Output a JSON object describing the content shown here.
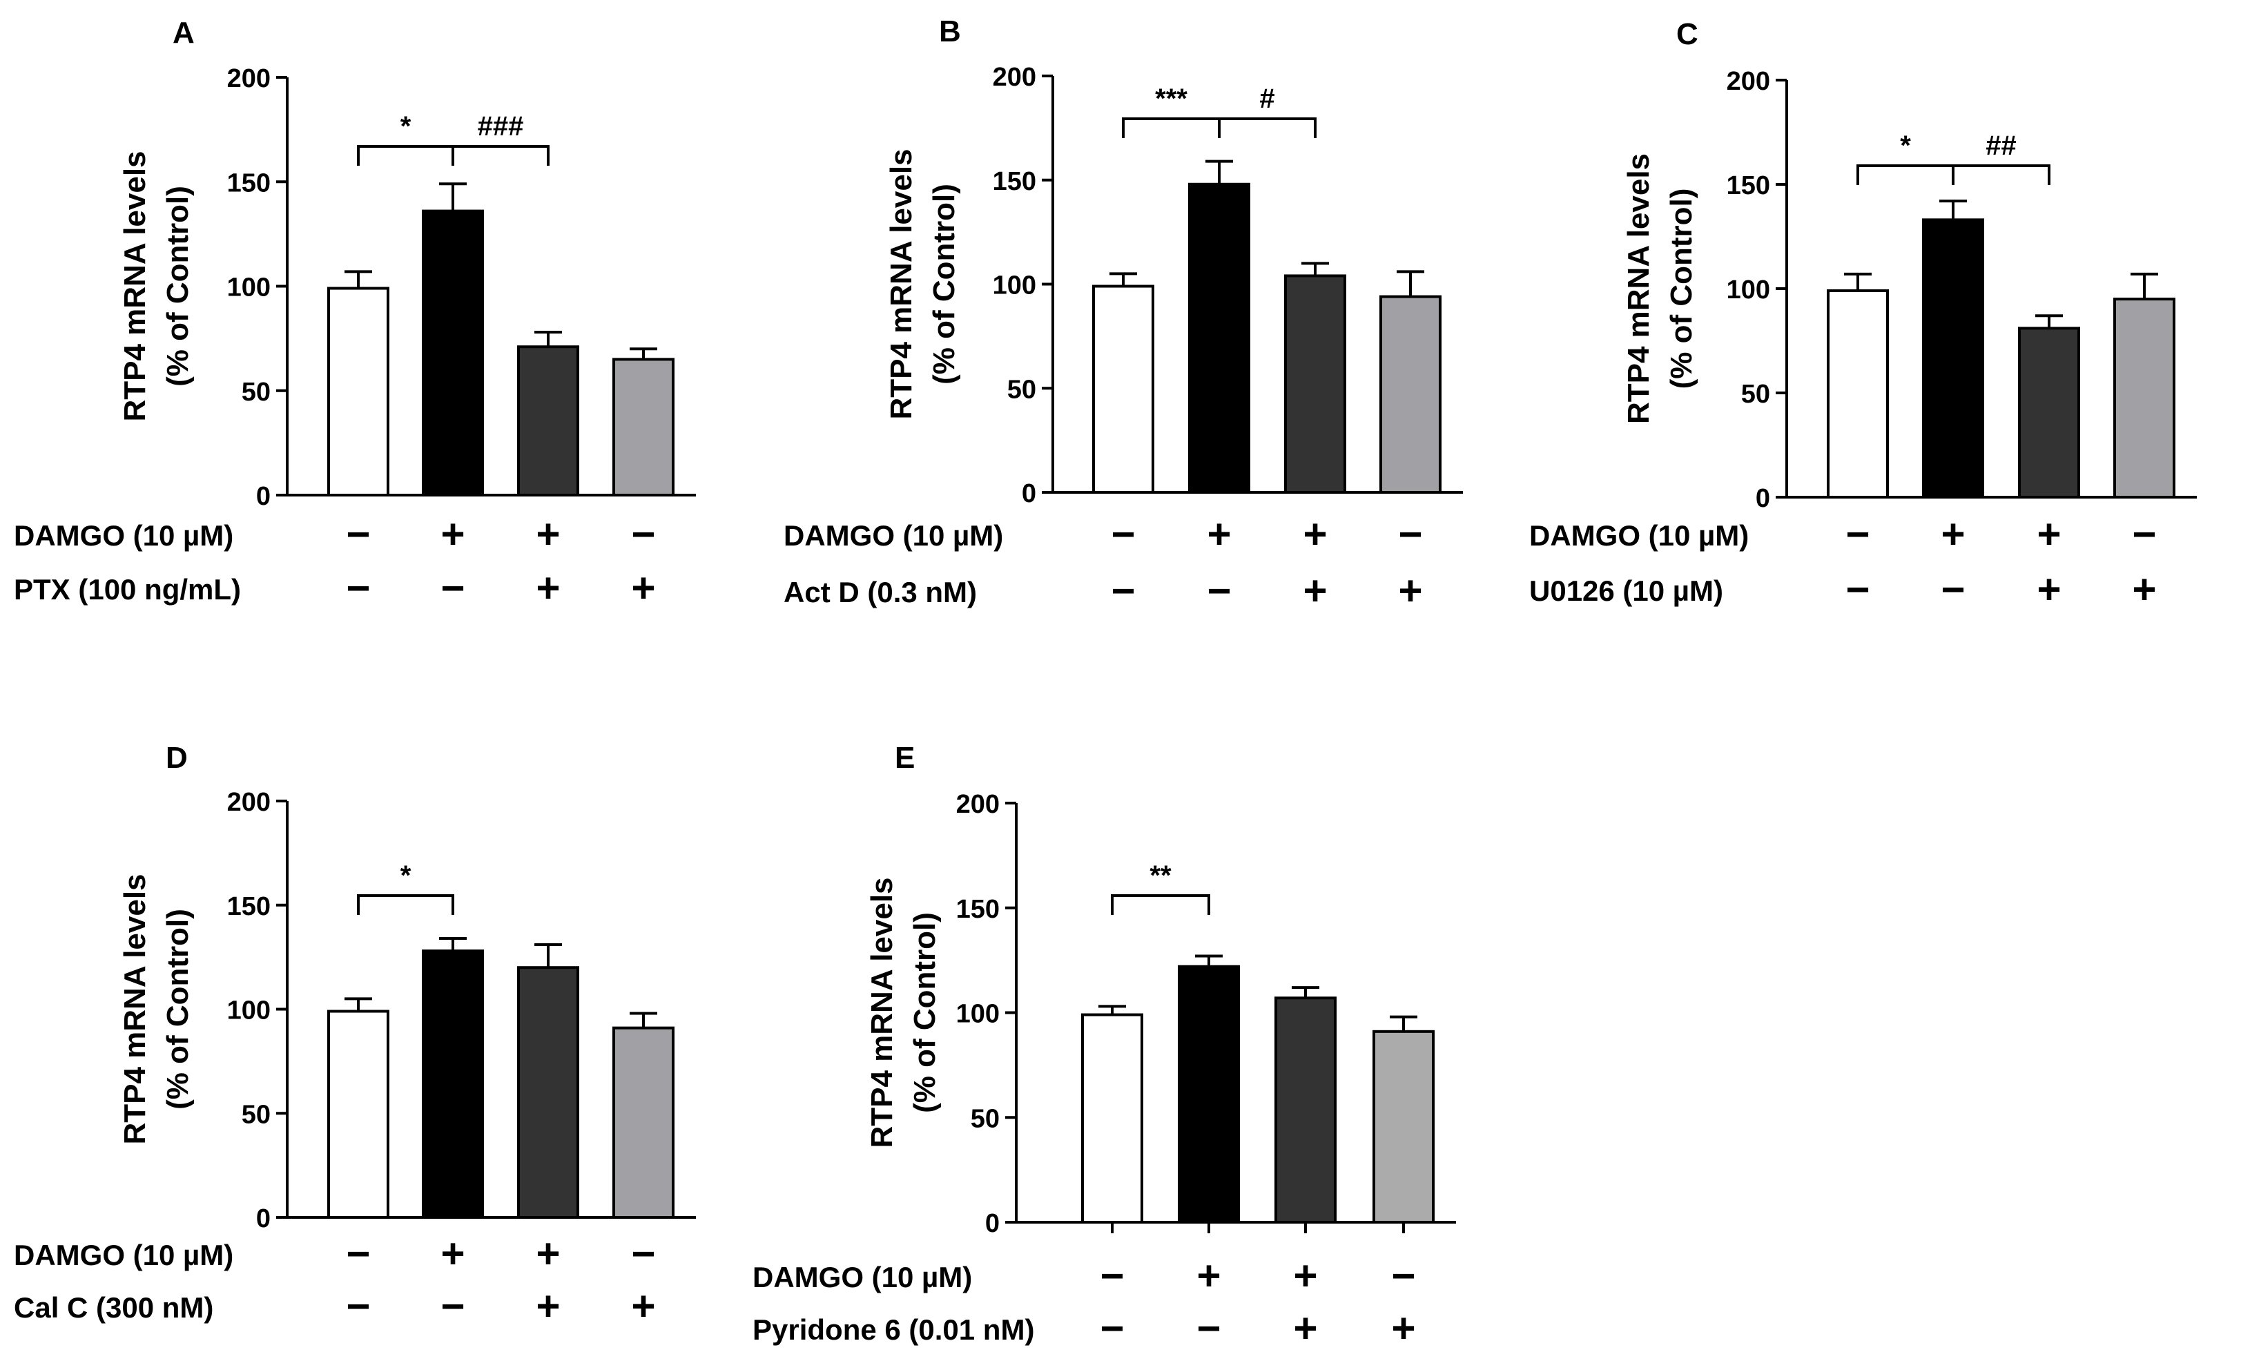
{
  "chart_data": [
    {
      "panel": "A",
      "type": "bar",
      "ylabel_line1": "RTP4 mRNA levels",
      "ylabel_line2": "(% of Control)",
      "ylim": [
        0,
        200
      ],
      "yticks": [
        "0",
        "50",
        "100",
        "150",
        "200"
      ],
      "values": [
        99,
        136,
        71,
        65
      ],
      "errors": [
        8,
        13,
        7,
        5
      ],
      "bar_colors": [
        "#ffffff",
        "#000000",
        "#333333",
        "#a0a0a5"
      ],
      "treatments": [
        {
          "label": "DAMGO (10 µM)",
          "signs": [
            "−",
            "+",
            "+",
            "−"
          ]
        },
        {
          "label": "PTX (100 ng/mL)",
          "signs": [
            "−",
            "−",
            "+",
            "+"
          ]
        }
      ],
      "significance": [
        {
          "from": 0,
          "to": 1,
          "label": "*"
        },
        {
          "from": 1,
          "to": 2,
          "label": "###"
        }
      ]
    },
    {
      "panel": "B",
      "type": "bar",
      "ylabel_line1": "RTP4 mRNA levels",
      "ylabel_line2": "(% of Control)",
      "ylim": [
        0,
        200
      ],
      "yticks": [
        "0",
        "50",
        "100",
        "150",
        "200"
      ],
      "values": [
        99,
        148,
        104,
        94
      ],
      "errors": [
        6,
        11,
        6,
        12
      ],
      "bar_colors": [
        "#ffffff",
        "#000000",
        "#333333",
        "#a0a0a5"
      ],
      "treatments": [
        {
          "label": "DAMGO (10 µM)",
          "signs": [
            "−",
            "+",
            "+",
            "−"
          ]
        },
        {
          "label": "Act D (0.3 nM)",
          "signs": [
            "−",
            "−",
            "+",
            "+"
          ]
        }
      ],
      "significance": [
        {
          "from": 0,
          "to": 1,
          "label": "***"
        },
        {
          "from": 1,
          "to": 2,
          "label": "#"
        }
      ]
    },
    {
      "panel": "C",
      "type": "bar",
      "ylabel_line1": "RTP4 mRNA levels",
      "ylabel_line2": "(% of Control)",
      "ylim": [
        0,
        200
      ],
      "yticks": [
        "0",
        "50",
        "100",
        "150",
        "200"
      ],
      "values": [
        99,
        133,
        81,
        95
      ],
      "errors": [
        8,
        9,
        6,
        12
      ],
      "bar_colors": [
        "#ffffff",
        "#000000",
        "#333333",
        "#a0a0a5"
      ],
      "treatments": [
        {
          "label": "DAMGO (10 µM)",
          "signs": [
            "−",
            "+",
            "+",
            "−"
          ]
        },
        {
          "label": "U0126 (10 µM)",
          "signs": [
            "−",
            "−",
            "+",
            "+"
          ]
        }
      ],
      "significance": [
        {
          "from": 0,
          "to": 1,
          "label": "*"
        },
        {
          "from": 1,
          "to": 2,
          "label": "##"
        }
      ]
    },
    {
      "panel": "D",
      "type": "bar",
      "ylabel_line1": "RTP4 mRNA levels",
      "ylabel_line2": "(% of Control)",
      "ylim": [
        0,
        200
      ],
      "yticks": [
        "0",
        "50",
        "100",
        "150",
        "200"
      ],
      "values": [
        99,
        128,
        120,
        91
      ],
      "errors": [
        6,
        6,
        11,
        7
      ],
      "bar_colors": [
        "#ffffff",
        "#000000",
        "#333333",
        "#a0a0a5"
      ],
      "treatments": [
        {
          "label": "DAMGO (10 µM)",
          "signs": [
            "−",
            "+",
            "+",
            "−"
          ]
        },
        {
          "label": "Cal C (300 nM)",
          "signs": [
            "−",
            "−",
            "+",
            "+"
          ]
        }
      ],
      "significance": [
        {
          "from": 0,
          "to": 1,
          "label": "*"
        }
      ]
    },
    {
      "panel": "E",
      "type": "bar",
      "ylabel_line1": "RTP4 mRNA levels",
      "ylabel_line2": "(% of Control)",
      "ylim": [
        0,
        200
      ],
      "yticks": [
        "0",
        "50",
        "100",
        "150",
        "200"
      ],
      "values": [
        99,
        122,
        107,
        91
      ],
      "errors": [
        4,
        5,
        5,
        7
      ],
      "bar_colors": [
        "#ffffff",
        "#000000",
        "#333333",
        "#ababab"
      ],
      "treatments": [
        {
          "label": "DAMGO (10 µM)",
          "signs": [
            "−",
            "+",
            "+",
            "−"
          ]
        },
        {
          "label": "Pyridone 6 (0.01 nM)",
          "signs": [
            "−",
            "−",
            "+",
            "+"
          ]
        }
      ],
      "significance": [
        {
          "from": 0,
          "to": 1,
          "label": "**"
        }
      ]
    }
  ]
}
